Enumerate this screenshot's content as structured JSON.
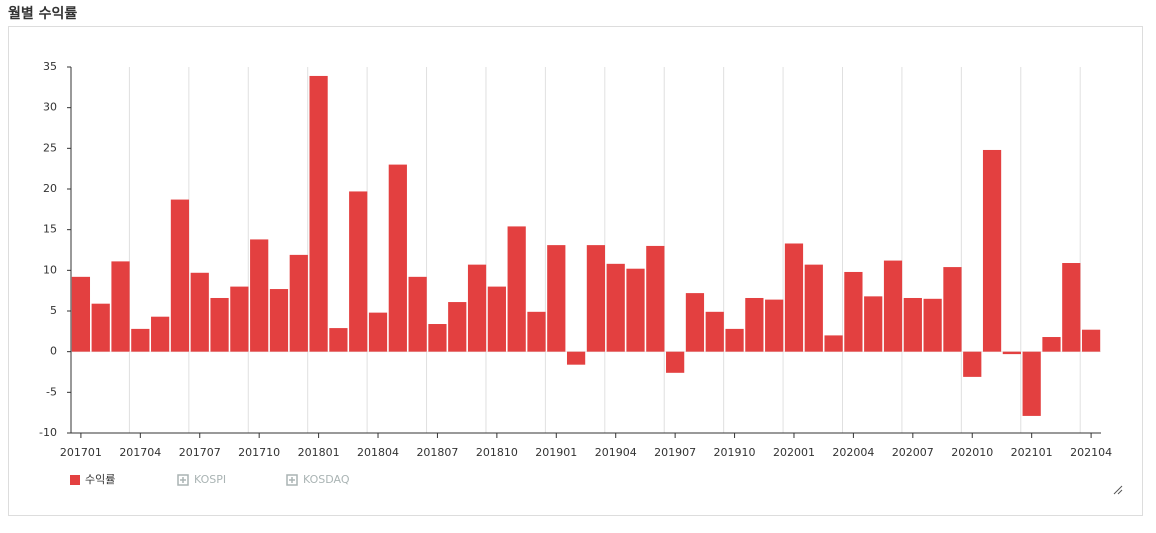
{
  "chart_data": {
    "type": "bar",
    "title": "월별 수익률",
    "categories": [
      "201701",
      null,
      null,
      "201704",
      null,
      null,
      "201707",
      null,
      null,
      "201710",
      null,
      null,
      "201801",
      null,
      null,
      "201804",
      null,
      null,
      "201807",
      null,
      null,
      "201810",
      null,
      null,
      "201901",
      null,
      null,
      "201904",
      null,
      null,
      "201907",
      null,
      null,
      "201910",
      null,
      null,
      "202001",
      null,
      null,
      "202004",
      null,
      null,
      "202007",
      null,
      null,
      "202010",
      null,
      null,
      "202101",
      null,
      null,
      "202104"
    ],
    "series": [
      {
        "name": "수익률",
        "color": "#e34040",
        "values": [
          9.2,
          5.9,
          11.1,
          2.8,
          4.3,
          18.7,
          9.7,
          6.6,
          8.0,
          13.8,
          7.7,
          11.9,
          33.9,
          2.9,
          19.7,
          4.8,
          23.0,
          9.2,
          3.4,
          6.1,
          10.7,
          8.0,
          15.4,
          4.9,
          13.1,
          -1.6,
          13.1,
          10.8,
          10.2,
          13.0,
          -2.6,
          7.2,
          4.9,
          2.8,
          6.6,
          6.4,
          13.3,
          10.7,
          2.0,
          9.8,
          6.8,
          11.2,
          6.6,
          6.5,
          10.4,
          -3.1,
          24.8,
          -0.3,
          -7.9,
          1.8,
          10.9,
          2.7
        ]
      }
    ],
    "inactive_legend": [
      "KOSPI",
      "KOSDAQ"
    ],
    "inactive_color": "#aab4b4",
    "ylim": [
      -10,
      35
    ],
    "yticks": [
      -10,
      -5,
      0,
      5,
      10,
      15,
      20,
      25,
      30,
      35
    ],
    "grid": true
  }
}
